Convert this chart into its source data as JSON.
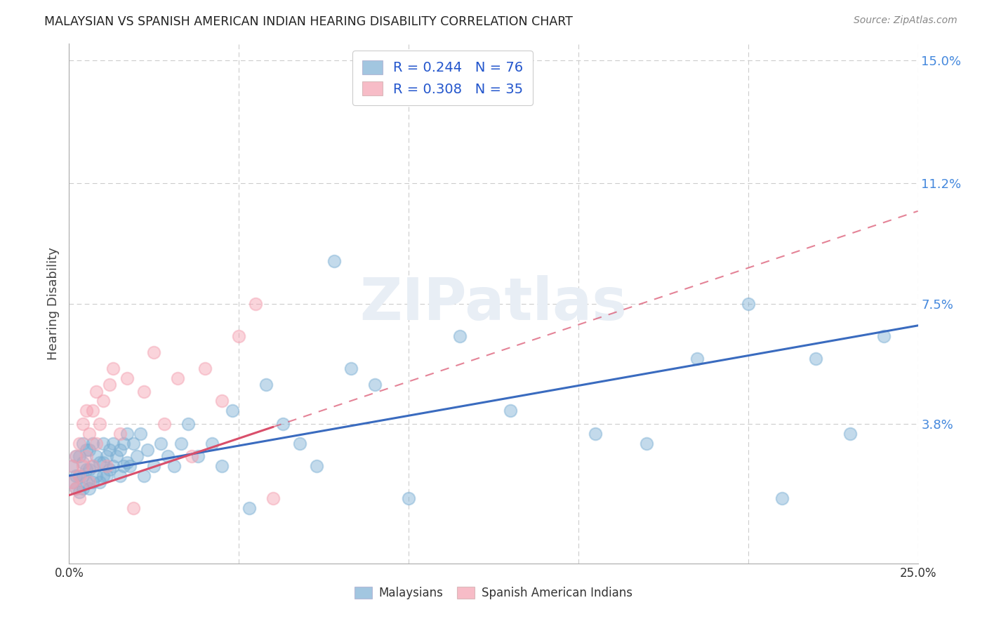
{
  "title": "MALAYSIAN VS SPANISH AMERICAN INDIAN HEARING DISABILITY CORRELATION CHART",
  "source": "Source: ZipAtlas.com",
  "ylabel": "Hearing Disability",
  "xlabel": "",
  "xlim": [
    0.0,
    0.25
  ],
  "ylim": [
    -0.005,
    0.155
  ],
  "xticks": [
    0.0,
    0.05,
    0.1,
    0.15,
    0.2,
    0.25
  ],
  "xtick_labels": [
    "0.0%",
    "",
    "",
    "",
    "",
    "25.0%"
  ],
  "ytick_labels_right": [
    "15.0%",
    "11.2%",
    "7.5%",
    "3.8%"
  ],
  "yticks_right": [
    0.15,
    0.112,
    0.075,
    0.038
  ],
  "malaysian_R": 0.244,
  "malaysian_N": 76,
  "spanish_R": 0.308,
  "spanish_N": 35,
  "background_color": "#ffffff",
  "grid_color": "#cccccc",
  "blue_color": "#7bafd4",
  "pink_color": "#f4a0b0",
  "blue_line_color": "#3a6bbf",
  "pink_line_color": "#d94f6b",
  "watermark_color": "#e8eef5",
  "watermark": "ZIPatlas",
  "malaysians_x": [
    0.001,
    0.001,
    0.002,
    0.002,
    0.002,
    0.003,
    0.003,
    0.003,
    0.004,
    0.004,
    0.004,
    0.004,
    0.005,
    0.005,
    0.005,
    0.006,
    0.006,
    0.006,
    0.007,
    0.007,
    0.007,
    0.008,
    0.008,
    0.009,
    0.009,
    0.01,
    0.01,
    0.01,
    0.011,
    0.011,
    0.012,
    0.012,
    0.013,
    0.013,
    0.014,
    0.015,
    0.015,
    0.016,
    0.016,
    0.017,
    0.017,
    0.018,
    0.019,
    0.02,
    0.021,
    0.022,
    0.023,
    0.025,
    0.027,
    0.029,
    0.031,
    0.033,
    0.035,
    0.038,
    0.042,
    0.045,
    0.048,
    0.053,
    0.058,
    0.063,
    0.068,
    0.073,
    0.078,
    0.083,
    0.09,
    0.1,
    0.115,
    0.13,
    0.155,
    0.17,
    0.185,
    0.2,
    0.21,
    0.22,
    0.23,
    0.24
  ],
  "malaysians_y": [
    0.02,
    0.025,
    0.018,
    0.022,
    0.028,
    0.017,
    0.022,
    0.028,
    0.018,
    0.022,
    0.026,
    0.032,
    0.02,
    0.024,
    0.03,
    0.018,
    0.024,
    0.03,
    0.02,
    0.025,
    0.032,
    0.022,
    0.028,
    0.02,
    0.026,
    0.022,
    0.026,
    0.032,
    0.022,
    0.028,
    0.024,
    0.03,
    0.025,
    0.032,
    0.028,
    0.022,
    0.03,
    0.025,
    0.032,
    0.026,
    0.035,
    0.025,
    0.032,
    0.028,
    0.035,
    0.022,
    0.03,
    0.025,
    0.032,
    0.028,
    0.025,
    0.032,
    0.038,
    0.028,
    0.032,
    0.025,
    0.042,
    0.012,
    0.05,
    0.038,
    0.032,
    0.025,
    0.088,
    0.055,
    0.05,
    0.015,
    0.065,
    0.042,
    0.035,
    0.032,
    0.058,
    0.075,
    0.015,
    0.058,
    0.035,
    0.065
  ],
  "spanish_x": [
    0.001,
    0.001,
    0.002,
    0.002,
    0.003,
    0.003,
    0.003,
    0.004,
    0.004,
    0.005,
    0.005,
    0.006,
    0.006,
    0.007,
    0.007,
    0.008,
    0.008,
    0.009,
    0.01,
    0.011,
    0.012,
    0.013,
    0.015,
    0.017,
    0.019,
    0.022,
    0.025,
    0.028,
    0.032,
    0.036,
    0.04,
    0.045,
    0.05,
    0.055,
    0.06
  ],
  "spanish_y": [
    0.02,
    0.025,
    0.018,
    0.028,
    0.015,
    0.022,
    0.032,
    0.025,
    0.038,
    0.028,
    0.042,
    0.02,
    0.035,
    0.025,
    0.042,
    0.032,
    0.048,
    0.038,
    0.045,
    0.025,
    0.05,
    0.055,
    0.035,
    0.052,
    0.012,
    0.048,
    0.06,
    0.038,
    0.052,
    0.028,
    0.055,
    0.045,
    0.065,
    0.075,
    0.015
  ],
  "spanish_line_x_max": 0.06
}
